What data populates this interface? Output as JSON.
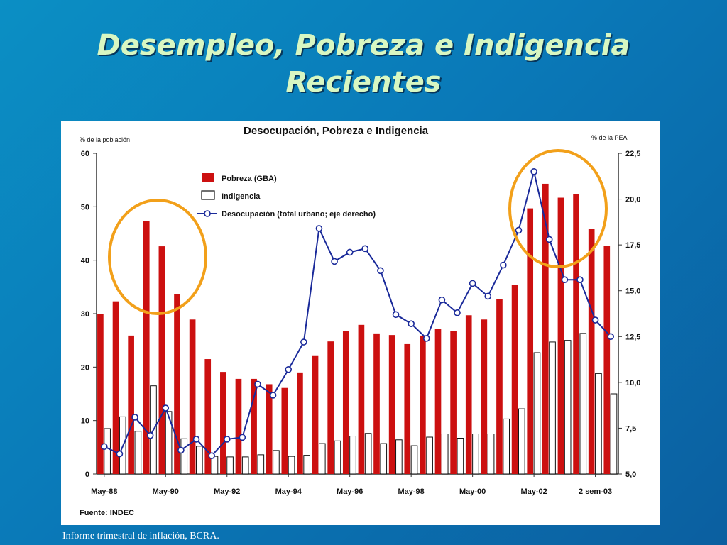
{
  "slide": {
    "title_line1": "Desempleo, Pobreza e Indigencia",
    "title_line2": "Recientes",
    "footer": "Informe trimestral de inflación, BCRA."
  },
  "colors": {
    "pobreza": "#cc1010",
    "indigencia_fill": "#ffffff",
    "desocupacion_line": "#1a2a9a",
    "highlight_circle": "#f2a01a"
  },
  "chart_data": {
    "type": "bar",
    "title": "Desocupación, Pobreza e Indigencia",
    "ylabel_left": "% de la población",
    "ylabel_right": "% de la PEA",
    "source": "Fuente: INDEC",
    "ylim_left": [
      0,
      60
    ],
    "ylim_right": [
      5.0,
      22.5
    ],
    "left_ticks": [
      "0",
      "10",
      "20",
      "30",
      "40",
      "50",
      "60"
    ],
    "right_ticks": [
      "5,0",
      "7,5",
      "10,0",
      "12,5",
      "15,0",
      "17,5",
      "20,0",
      "22,5"
    ],
    "x_tick_labels": [
      "May-88",
      "May-90",
      "May-92",
      "May-94",
      "May-96",
      "May-98",
      "May-00",
      "May-02",
      "2 sem-03"
    ],
    "legend": {
      "position": "top-left",
      "pobreza": "Pobreza (GBA)",
      "indigencia": "Indigencia",
      "desocupacion": "Desocupación (total urbano; eje derecho)"
    },
    "series": [
      {
        "name": "Pobreza (GBA)",
        "axis": "left",
        "values": [
          30,
          32.3,
          25.9,
          47.3,
          42.6,
          33.7,
          28.9,
          21.5,
          19.1,
          17.8,
          17.8,
          16.8,
          16.1,
          19.0,
          22.2,
          24.8,
          26.7,
          27.9,
          26.3,
          26.0,
          24.3,
          25.9,
          27.1,
          26.7,
          29.7,
          28.9,
          32.7,
          35.4,
          49.7,
          54.3,
          51.7,
          52.3,
          45.9,
          42.7
        ]
      },
      {
        "name": "Indigencia",
        "axis": "left",
        "values": [
          8.5,
          10.7,
          8.0,
          16.5,
          11.7,
          6.6,
          5.2,
          3.3,
          3.2,
          3.2,
          3.6,
          4.4,
          3.3,
          3.5,
          5.7,
          6.2,
          7.1,
          7.6,
          5.7,
          6.4,
          5.3,
          6.9,
          7.5,
          6.7,
          7.5,
          7.5,
          10.3,
          12.2,
          22.7,
          24.7,
          25.0,
          26.3,
          18.8,
          15.0
        ]
      },
      {
        "name": "Desocupación (total urbano; eje derecho)",
        "axis": "right",
        "values": [
          6.5,
          6.1,
          8.1,
          7.1,
          8.6,
          6.3,
          6.9,
          6.0,
          6.9,
          7.0,
          9.9,
          9.3,
          10.7,
          12.2,
          18.4,
          16.6,
          17.1,
          17.3,
          16.1,
          13.7,
          13.2,
          12.4,
          14.5,
          13.8,
          15.4,
          14.7,
          16.4,
          18.3,
          21.5,
          17.8,
          15.6,
          15.6,
          13.4,
          12.5
        ]
      }
    ],
    "grid": false
  }
}
